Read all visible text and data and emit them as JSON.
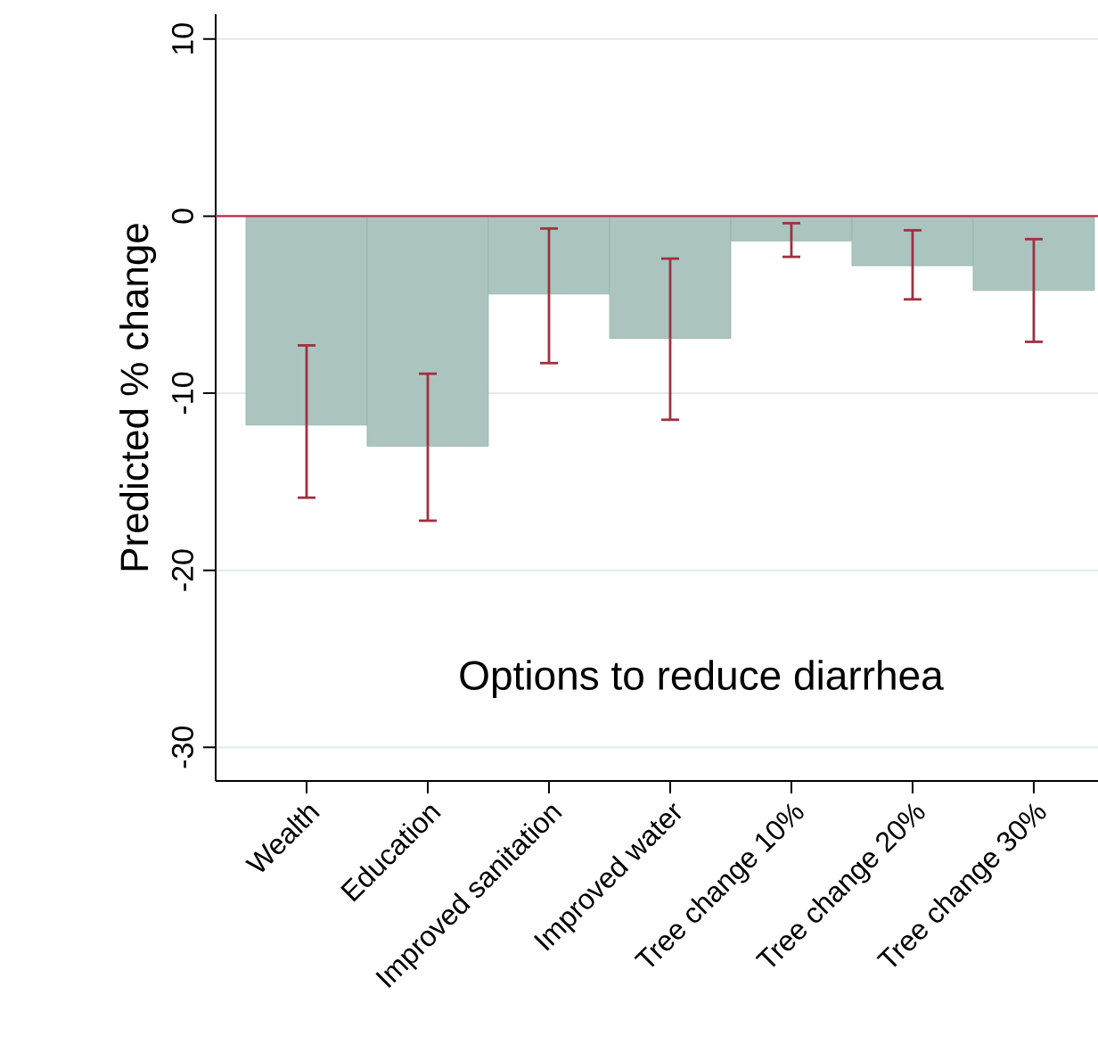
{
  "chart_data": {
    "type": "bar",
    "title": "Options to reduce diarrhea",
    "ylabel": "Predicted % change",
    "categories": [
      "Wealth",
      "Education",
      "Improved sanitation",
      "Improved water",
      "Tree change 10%",
      "Tree change 20%",
      "Tree change 30%"
    ],
    "values": [
      -11.8,
      -13.0,
      -4.4,
      -6.9,
      -1.4,
      -2.8,
      -4.2
    ],
    "errors": [
      [
        -15.9,
        -7.3
      ],
      [
        -17.2,
        -8.9
      ],
      [
        -8.3,
        -0.7
      ],
      [
        -11.5,
        -2.4
      ],
      [
        -2.3,
        -0.4
      ],
      [
        -4.7,
        -0.8
      ],
      [
        -7.1,
        -1.3
      ]
    ],
    "color": "#abc4bf",
    "ylim": [
      -31.9,
      11.4
    ],
    "yticks": [
      -30,
      -20,
      -10,
      0,
      10
    ],
    "grid": "y",
    "ref_lines": [
      {
        "axis": "y",
        "value": 0,
        "color": "#c0284a"
      }
    ]
  }
}
